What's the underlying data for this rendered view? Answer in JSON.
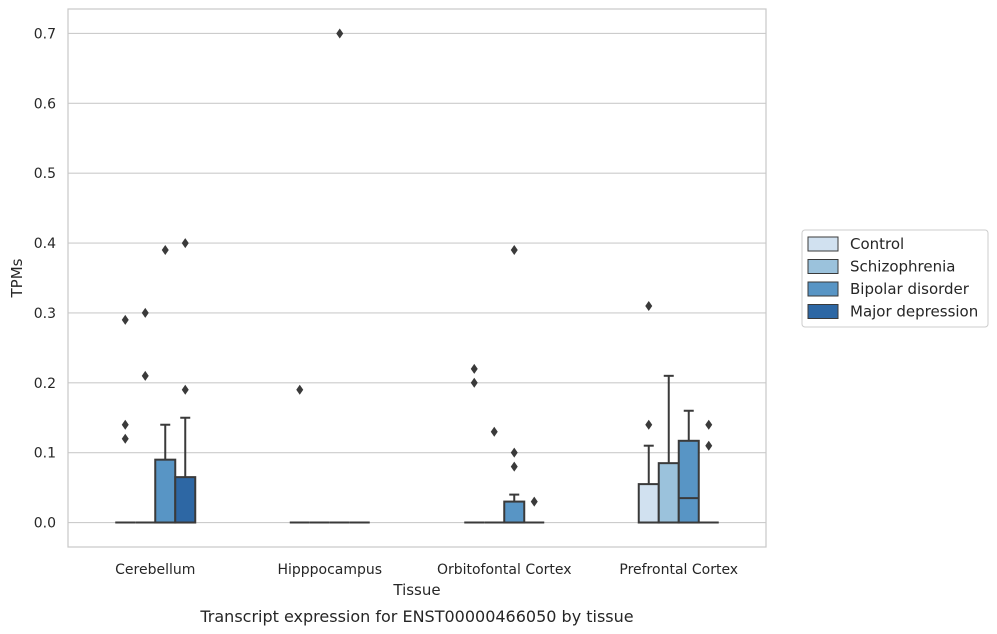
{
  "caption": "Transcript expression for ENST00000466050 by tissue",
  "colors": {
    "Control": "#d1e1f0",
    "Schizophrenia": "#9bc2dc",
    "Bipolar disorder": "#5895c5",
    "Major depression": "#2d67a4",
    "grid": "#cccccc",
    "line": "#3a3a3a",
    "frame": "#c8c8c8"
  },
  "chart_data": {
    "type": "box",
    "title": "",
    "xlabel": "Tissue",
    "ylabel": "TPMs",
    "ylim": [
      -0.035,
      0.735
    ],
    "yticks": [
      0.0,
      0.1,
      0.2,
      0.3,
      0.4,
      0.5,
      0.6,
      0.7
    ],
    "ytick_labels": [
      "0.0",
      "0.1",
      "0.2",
      "0.3",
      "0.4",
      "0.5",
      "0.6",
      "0.7"
    ],
    "grid": true,
    "legend_position": "right",
    "categories": [
      "Cerebellum",
      "Hipppocampus",
      "Orbitofontal Cortex",
      "Prefrontal Cortex"
    ],
    "series": [
      {
        "name": "Control",
        "boxes": [
          {
            "q1": 0,
            "median": 0,
            "q3": 0,
            "whisker_low": 0,
            "whisker_high": 0,
            "outliers": [
              0.29,
              0.14,
              0.12
            ]
          },
          {
            "q1": 0,
            "median": 0,
            "q3": 0,
            "whisker_low": 0,
            "whisker_high": 0,
            "outliers": [
              0.19
            ]
          },
          {
            "q1": 0,
            "median": 0,
            "q3": 0,
            "whisker_low": 0,
            "whisker_high": 0,
            "outliers": [
              0.22,
              0.2
            ]
          },
          {
            "q1": 0,
            "median": 0,
            "q3": 0.055,
            "whisker_low": 0,
            "whisker_high": 0.11,
            "outliers": [
              0.31,
              0.14
            ]
          }
        ]
      },
      {
        "name": "Schizophrenia",
        "boxes": [
          {
            "q1": 0,
            "median": 0,
            "q3": 0,
            "whisker_low": 0,
            "whisker_high": 0,
            "outliers": [
              0.3,
              0.21
            ]
          },
          {
            "q1": 0,
            "median": 0,
            "q3": 0,
            "whisker_low": 0,
            "whisker_high": 0,
            "outliers": []
          },
          {
            "q1": 0,
            "median": 0,
            "q3": 0,
            "whisker_low": 0,
            "whisker_high": 0,
            "outliers": [
              0.13
            ]
          },
          {
            "q1": 0,
            "median": 0,
            "q3": 0.085,
            "whisker_low": 0,
            "whisker_high": 0.21,
            "outliers": []
          }
        ]
      },
      {
        "name": "Bipolar disorder",
        "boxes": [
          {
            "q1": 0,
            "median": 0,
            "q3": 0.09,
            "whisker_low": 0,
            "whisker_high": 0.14,
            "outliers": [
              0.39
            ]
          },
          {
            "q1": 0,
            "median": 0,
            "q3": 0,
            "whisker_low": 0,
            "whisker_high": 0,
            "outliers": [
              0.7
            ]
          },
          {
            "q1": 0,
            "median": 0,
            "q3": 0.03,
            "whisker_low": 0,
            "whisker_high": 0.04,
            "outliers": [
              0.39,
              0.1,
              0.08
            ]
          },
          {
            "q1": 0,
            "median": 0.035,
            "q3": 0.117,
            "whisker_low": 0,
            "whisker_high": 0.16,
            "outliers": []
          }
        ]
      },
      {
        "name": "Major depression",
        "boxes": [
          {
            "q1": 0,
            "median": 0,
            "q3": 0.065,
            "whisker_low": 0,
            "whisker_high": 0.15,
            "outliers": [
              0.4,
              0.19
            ]
          },
          {
            "q1": 0,
            "median": 0,
            "q3": 0,
            "whisker_low": 0,
            "whisker_high": 0,
            "outliers": []
          },
          {
            "q1": 0,
            "median": 0,
            "q3": 0,
            "whisker_low": 0,
            "whisker_high": 0,
            "outliers": [
              0.03
            ]
          },
          {
            "q1": 0,
            "median": 0,
            "q3": 0,
            "whisker_low": 0,
            "whisker_high": 0,
            "outliers": [
              0.14,
              0.11
            ]
          }
        ]
      }
    ]
  }
}
